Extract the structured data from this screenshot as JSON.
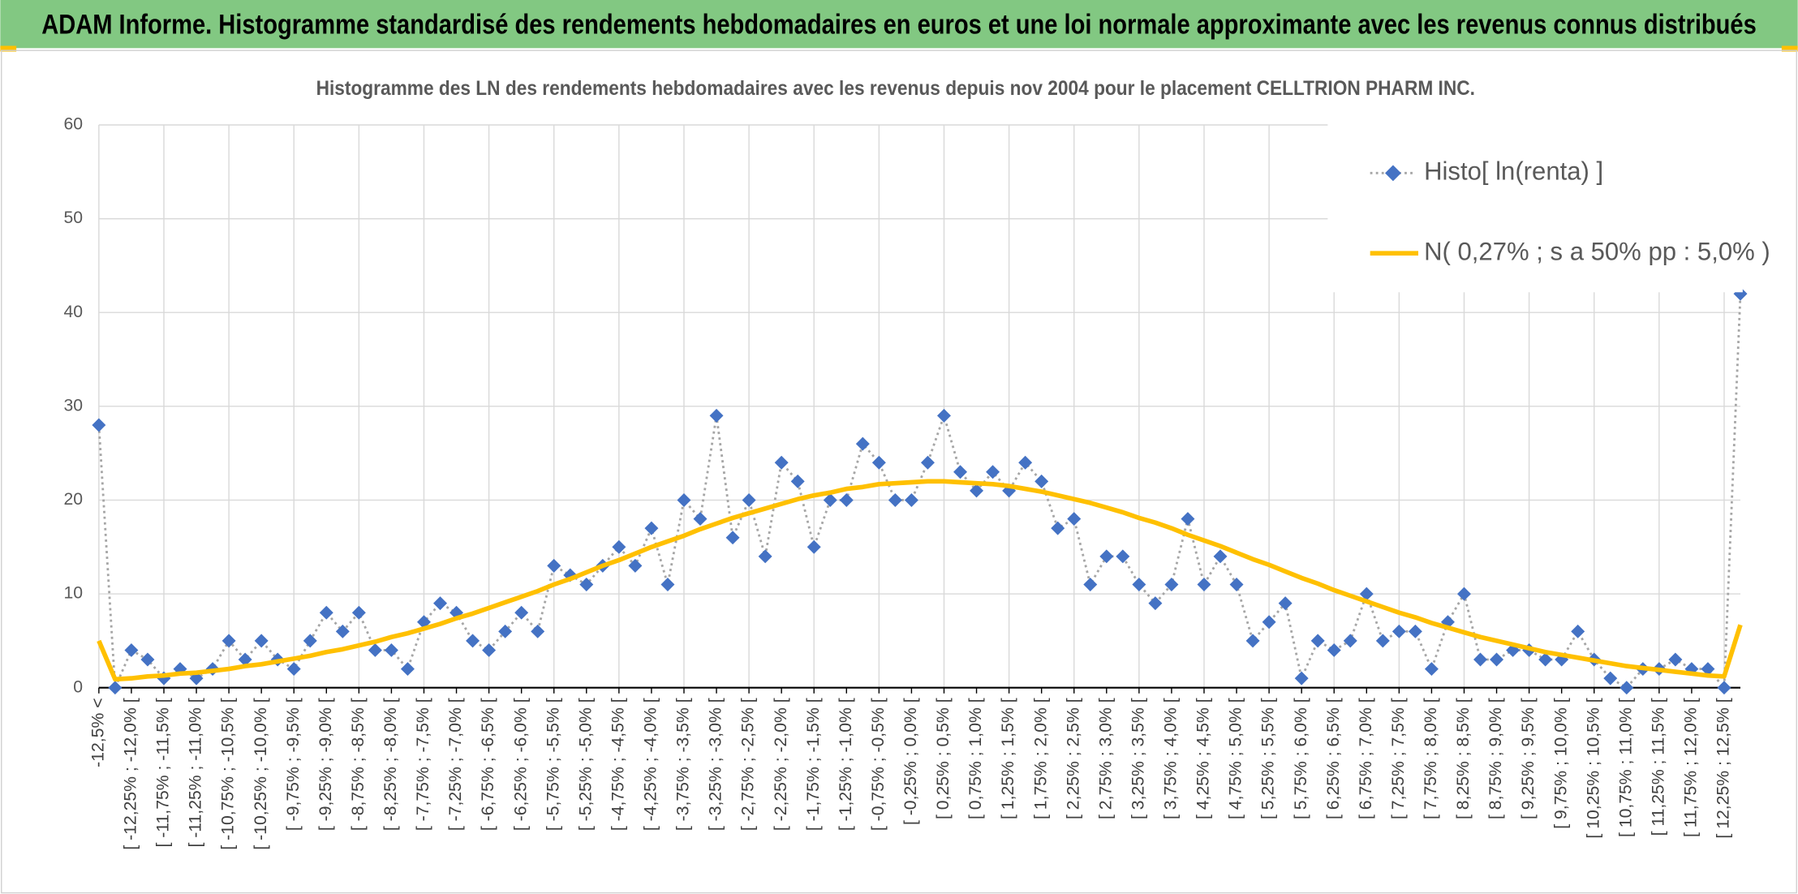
{
  "header": {
    "title": "ADAM Informe. Histogramme standardisé des rendements hebdomadaires en euros et une loi normale approximante avec les revenus connus distribués"
  },
  "chart_data": {
    "type": "line",
    "title": "Histogramme des LN des rendements hebdomadaires avec les revenus depuis nov 2004 pour le placement CELLTRION PHARM INC.",
    "categories": [
      "-12,5% <",
      null,
      "[ -12,25% ; -12,0% [",
      null,
      "[ -11,75% ; -11,5% [",
      null,
      "[ -11,25% ; -11,0% [",
      null,
      "[ -10,75% ; -10,5% [",
      null,
      "[ -10,25% ; -10,0% [",
      null,
      "[ -9,75% ; -9,5% [",
      null,
      "[ -9,25% ; -9,0% [",
      null,
      "[ -8,75% ; -8,5% [",
      null,
      "[ -8,25% ; -8,0% [",
      null,
      "[ -7,75% ; -7,5% [",
      null,
      "[ -7,25% ; -7,0% [",
      null,
      "[ -6,75% ; -6,5% [",
      null,
      "[ -6,25% ; -6,0% [",
      null,
      "[ -5,75% ; -5,5% [",
      null,
      "[ -5,25% ; -5,0% [",
      null,
      "[ -4,75% ; -4,5% [",
      null,
      "[ -4,25% ; -4,0% [",
      null,
      "[ -3,75% ; -3,5% [",
      null,
      "[ -3,25% ; -3,0% [",
      null,
      "[ -2,75% ; -2,5% [",
      null,
      "[ -2,25% ; -2,0% [",
      null,
      "[ -1,75% ; -1,5% [",
      null,
      "[ -1,25% ; -1,0% [",
      null,
      "[ -0,75% ; -0,5% [",
      null,
      "[ -0,25% ; 0,0% [",
      null,
      "[ 0,25% ; 0,5% [",
      null,
      "[ 0,75% ; 1,0% [",
      null,
      "[ 1,25% ; 1,5% [",
      null,
      "[ 1,75% ; 2,0% [",
      null,
      "[ 2,25% ; 2,5% [",
      null,
      "[ 2,75% ; 3,0% [",
      null,
      "[ 3,25% ; 3,5% [",
      null,
      "[ 3,75% ; 4,0% [",
      null,
      "[ 4,25% ; 4,5% [",
      null,
      "[ 4,75% ; 5,0% [",
      null,
      "[ 5,25% ; 5,5% [",
      null,
      "[ 5,75% ; 6,0% [",
      null,
      "[ 6,25% ; 6,5% [",
      null,
      "[ 6,75% ; 7,0% [",
      null,
      "[ 7,25% ; 7,5% [",
      null,
      "[ 7,75% ; 8,0% [",
      null,
      "[ 8,25% ; 8,5% [",
      null,
      "[ 8,75% ; 9,0% [",
      null,
      "[ 9,25% ; 9,5% [",
      null,
      "[ 9,75% ; 10,0% [",
      null,
      "[ 10,25% ; 10,5% [",
      null,
      "[ 10,75% ; 11,0% [",
      null,
      "[ 11,25% ; 11,5% [",
      null,
      "[ 11,75% ; 12,0% [",
      null,
      "[ 12,25% ; 12,5% [",
      null
    ],
    "series": [
      {
        "name": "Histo[ ln(renta) ]",
        "color": "#4472c4",
        "line_color": "#a6a6a6",
        "values": [
          28,
          0,
          4,
          3,
          1,
          2,
          1,
          2,
          5,
          3,
          5,
          3,
          2,
          5,
          8,
          6,
          8,
          4,
          4,
          2,
          7,
          9,
          8,
          5,
          4,
          6,
          8,
          6,
          13,
          12,
          11,
          13,
          15,
          13,
          17,
          11,
          20,
          18,
          29,
          16,
          20,
          14,
          24,
          22,
          15,
          20,
          20,
          26,
          24,
          20,
          20,
          24,
          29,
          23,
          21,
          23,
          21,
          24,
          22,
          17,
          18,
          11,
          14,
          14,
          11,
          9,
          11,
          18,
          11,
          14,
          11,
          5,
          7,
          9,
          1,
          5,
          4,
          5,
          10,
          5,
          6,
          6,
          2,
          7,
          10,
          3,
          3,
          4,
          4,
          3,
          3,
          6,
          3,
          1,
          0,
          2,
          2,
          3,
          2,
          2,
          0,
          42
        ]
      },
      {
        "name": "N( 0,27% ; s a 50% pp : 5,0% )",
        "color": "#ffc000",
        "values": [
          5,
          0.9,
          1.0,
          1.2,
          1.3,
          1.5,
          1.6,
          1.8,
          2.0,
          2.3,
          2.5,
          2.8,
          3.1,
          3.4,
          3.8,
          4.1,
          4.5,
          4.9,
          5.4,
          5.8,
          6.3,
          6.8,
          7.4,
          7.9,
          8.5,
          9.1,
          9.7,
          10.3,
          11.0,
          11.6,
          12.3,
          13.0,
          13.6,
          14.3,
          15.0,
          15.6,
          16.2,
          16.9,
          17.5,
          18.1,
          18.6,
          19.1,
          19.6,
          20.1,
          20.5,
          20.8,
          21.2,
          21.4,
          21.7,
          21.8,
          21.9,
          22.0,
          22.0,
          21.9,
          21.8,
          21.7,
          21.5,
          21.2,
          20.9,
          20.5,
          20.1,
          19.7,
          19.2,
          18.7,
          18.1,
          17.6,
          17.0,
          16.3,
          15.7,
          15.1,
          14.4,
          13.7,
          13.1,
          12.4,
          11.7,
          11.1,
          10.4,
          9.8,
          9.2,
          8.6,
          8.0,
          7.5,
          6.9,
          6.4,
          5.9,
          5.4,
          5.0,
          4.6,
          4.2,
          3.8,
          3.5,
          3.2,
          2.9,
          2.6,
          2.3,
          2.1,
          1.9,
          1.7,
          1.5,
          1.3,
          1.2,
          6.7
        ]
      }
    ],
    "ylim": [
      0,
      60
    ],
    "yticks": [
      0,
      10,
      20,
      30,
      40,
      50,
      60
    ],
    "grid": true,
    "legend": "upper right"
  }
}
